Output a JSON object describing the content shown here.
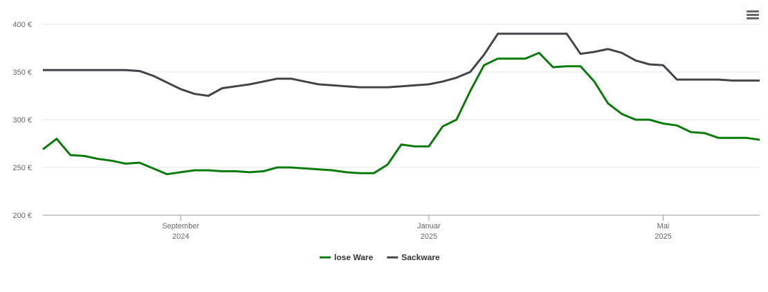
{
  "chart_data": {
    "type": "line",
    "categories": [
      null,
      null,
      null,
      null,
      null,
      null,
      null,
      null,
      null,
      null,
      "September 2024",
      null,
      null,
      null,
      null,
      null,
      null,
      null,
      null,
      null,
      null,
      null,
      null,
      null,
      null,
      null,
      null,
      null,
      "Januar 2025",
      null,
      null,
      null,
      null,
      null,
      null,
      null,
      null,
      null,
      null,
      null,
      null,
      null,
      null,
      null,
      null,
      "Mai 2025",
      null,
      null,
      null,
      null,
      null,
      null,
      null
    ],
    "series": [
      {
        "name": "lose Ware",
        "color": "#0a7a0a",
        "values": [
          269,
          280,
          263,
          262,
          259,
          257,
          254,
          255,
          249,
          243,
          245,
          247,
          247,
          246,
          246,
          245,
          246,
          250,
          250,
          249,
          248,
          247,
          245,
          244,
          244,
          253,
          274,
          272,
          272,
          293,
          300,
          330,
          357,
          364,
          364,
          364,
          370,
          355,
          356,
          356,
          340,
          317,
          306,
          300,
          300,
          296,
          294,
          287,
          286,
          281,
          281,
          281,
          279
        ]
      },
      {
        "name": "Sackware",
        "color": "#434348",
        "values": [
          352,
          352,
          352,
          352,
          352,
          352,
          352,
          351,
          346,
          339,
          332,
          327,
          325,
          333,
          335,
          337,
          340,
          343,
          343,
          340,
          337,
          336,
          335,
          334,
          334,
          334,
          335,
          336,
          337,
          340,
          344,
          350,
          368,
          390,
          390,
          390,
          390,
          390,
          390,
          369,
          371,
          374,
          370,
          362,
          358,
          357,
          342,
          342,
          342,
          342,
          341,
          341,
          341
        ]
      }
    ],
    "ylim": [
      200,
      400
    ],
    "yticks": [
      {
        "value": 200,
        "label": "200 €"
      },
      {
        "value": 250,
        "label": "250 €"
      },
      {
        "value": 300,
        "label": "300 €"
      },
      {
        "value": 350,
        "label": "350 €"
      },
      {
        "value": 400,
        "label": "400 €"
      }
    ],
    "grid": true
  }
}
